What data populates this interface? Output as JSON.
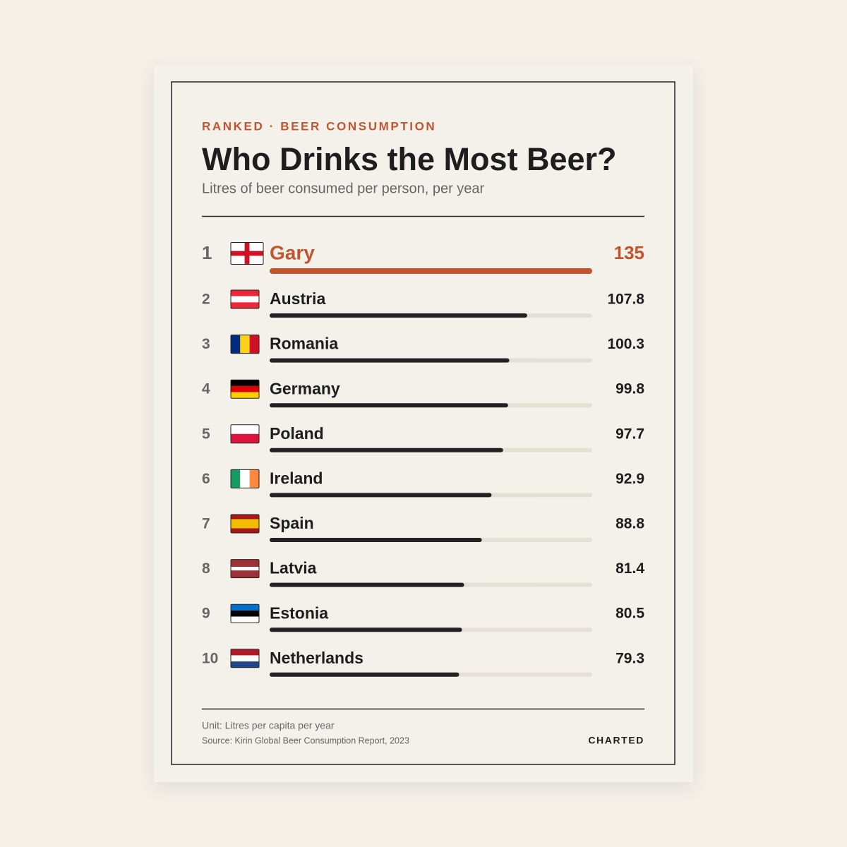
{
  "chart_data": {
    "type": "bar",
    "orientation": "horizontal",
    "kicker": "RANKED · BEER CONSUMPTION",
    "title": "Who Drinks the Most Beer?",
    "subtitle": "Litres of beer consumed per person, per year",
    "ranks": [
      1,
      2,
      3,
      4,
      5,
      6,
      7,
      8,
      9,
      10
    ],
    "categories": [
      "Gary",
      "Austria",
      "Romania",
      "Germany",
      "Poland",
      "Ireland",
      "Spain",
      "Latvia",
      "Estonia",
      "Netherlands"
    ],
    "values": [
      135,
      107.8,
      100.3,
      99.8,
      97.7,
      92.9,
      88.8,
      81.4,
      80.5,
      79.3
    ],
    "color": "#222222",
    "highlight_color": "#c0562f",
    "track_color": "#e6e0d4",
    "footer": {
      "unit": "Unit: Litres per capita per year",
      "source": "Source: Kirin Global Beer Consumption Report, 2023",
      "brand": "CHARTED"
    }
  }
}
